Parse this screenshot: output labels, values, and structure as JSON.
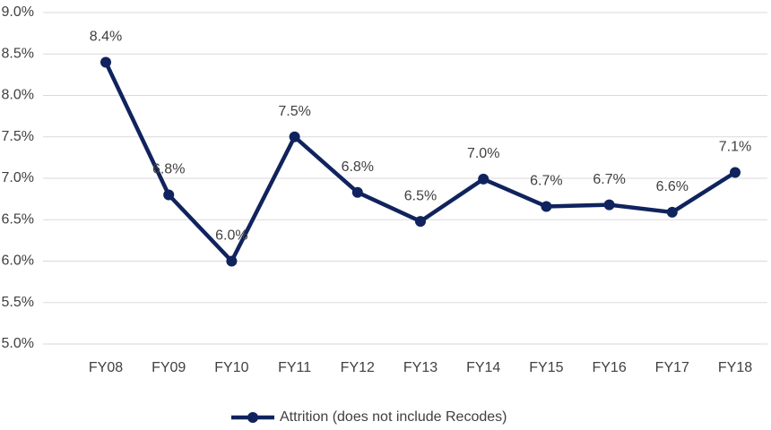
{
  "chart_data": {
    "type": "line",
    "categories": [
      "FY08",
      "FY09",
      "FY10",
      "FY11",
      "FY12",
      "FY13",
      "FY14",
      "FY15",
      "FY16",
      "FY17",
      "FY18"
    ],
    "series": [
      {
        "name": "Attrition (does not include Recodes)",
        "color": "#10235e",
        "values": [
          8.4,
          6.8,
          6.0,
          7.5,
          6.83,
          6.48,
          6.99,
          6.66,
          6.68,
          6.59,
          7.07
        ],
        "value_labels": [
          "8.4%",
          "6.8%",
          "6.0%",
          "7.5%",
          "6.8%",
          "6.5%",
          "7.0%",
          "6.7%",
          "6.7%",
          "6.6%",
          "7.1%"
        ]
      }
    ],
    "ylim": [
      5.0,
      9.0
    ],
    "yticks": [
      {
        "value": 5.0,
        "label": "5.0%"
      },
      {
        "value": 5.5,
        "label": "5.5%"
      },
      {
        "value": 6.0,
        "label": "6.0%"
      },
      {
        "value": 6.5,
        "label": "6.5%"
      },
      {
        "value": 7.0,
        "label": "7.0%"
      },
      {
        "value": 7.5,
        "label": "7.5%"
      },
      {
        "value": 8.0,
        "label": "8.0%"
      },
      {
        "value": 8.5,
        "label": "8.5%"
      },
      {
        "value": 9.0,
        "label": "9.0%"
      }
    ],
    "grid": true,
    "legend": "bottom"
  }
}
